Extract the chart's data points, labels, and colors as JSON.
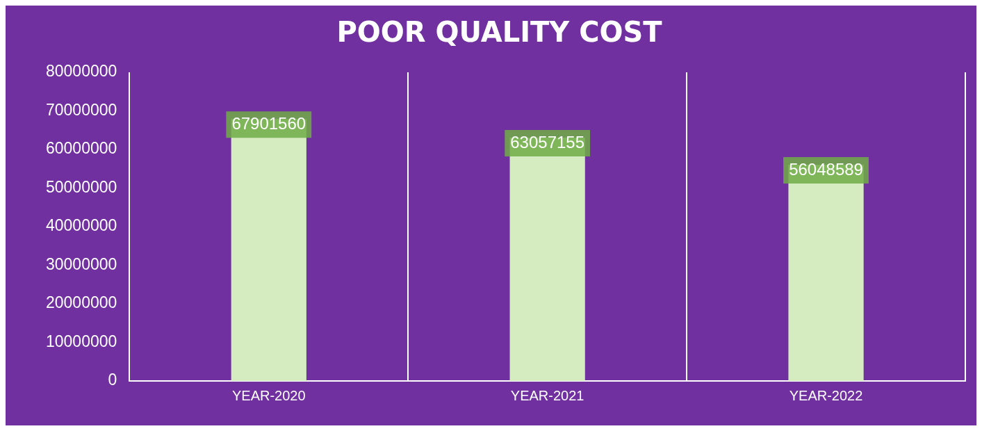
{
  "chart_data": {
    "type": "bar",
    "title": "POOR QUALITY COST",
    "categories": [
      "YEAR-2020",
      "YEAR-2021",
      "YEAR-2022"
    ],
    "values": [
      67901560,
      63057155,
      56048589
    ],
    "color": "#d4ecc0",
    "ylim": [
      0,
      80000000
    ],
    "yticks": [
      0,
      10000000,
      20000000,
      30000000,
      40000000,
      50000000,
      60000000,
      70000000,
      80000000
    ],
    "grid": "x",
    "data_labels": true,
    "legend": false
  }
}
